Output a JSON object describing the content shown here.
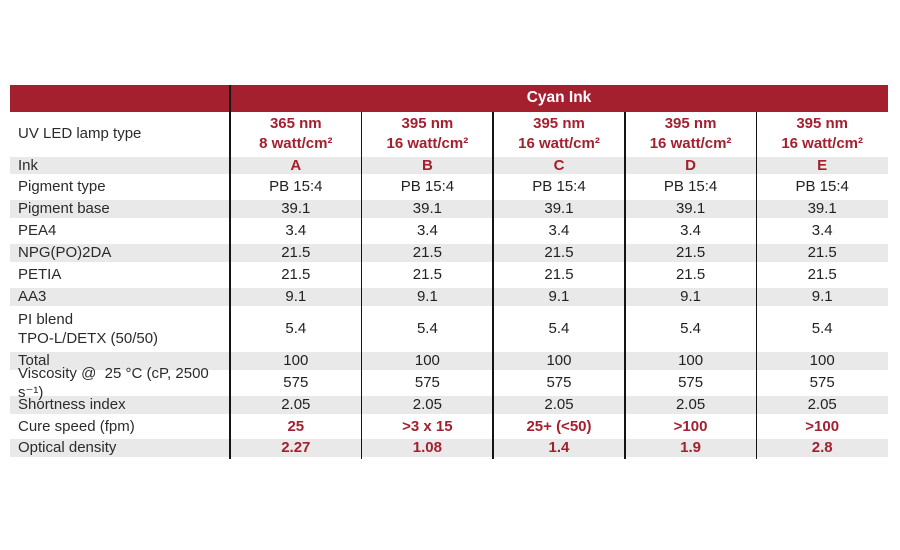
{
  "colors": {
    "accent": "#a4202f",
    "row_shade": "#e9e9e9",
    "header_text": "#ffffff"
  },
  "table": {
    "title": "Cyan Ink",
    "rows": [
      {
        "label": "UV LED lamp type",
        "values": [
          "365 nm\n8 watt/cm²",
          "395 nm\n16 watt/cm²",
          "395 nm\n16 watt/cm²",
          "395 nm\n16 watt/cm²",
          "395 nm\n16 watt/cm²"
        ],
        "red": true,
        "shade": false,
        "h": 43
      },
      {
        "label": "Ink",
        "values": [
          "A",
          "B",
          "C",
          "D",
          "E"
        ],
        "red": true,
        "shade": true,
        "h": 21
      },
      {
        "label": "Pigment type",
        "values": [
          "PB 15:4",
          "PB 15:4",
          "PB 15:4",
          "PB 15:4",
          "PB 15:4"
        ],
        "red": false,
        "shade": false,
        "h": 22
      },
      {
        "label": "Pigment base",
        "values": [
          "39.1",
          "39.1",
          "39.1",
          "39.1",
          "39.1"
        ],
        "red": false,
        "shade": true,
        "h": 22
      },
      {
        "label": "PEA4",
        "values": [
          "3.4",
          "3.4",
          "3.4",
          "3.4",
          "3.4"
        ],
        "red": false,
        "shade": false,
        "h": 22
      },
      {
        "label": "NPG(PO)2DA",
        "values": [
          "21.5",
          "21.5",
          "21.5",
          "21.5",
          "21.5"
        ],
        "red": false,
        "shade": true,
        "h": 22
      },
      {
        "label": "PETIA",
        "values": [
          "21.5",
          "21.5",
          "21.5",
          "21.5",
          "21.5"
        ],
        "red": false,
        "shade": false,
        "h": 22
      },
      {
        "label": "AA3",
        "values": [
          "9.1",
          "9.1",
          "9.1",
          "9.1",
          "9.1"
        ],
        "red": false,
        "shade": true,
        "h": 22
      },
      {
        "label": "PI blend\nTPO-L/DETX (50/50)",
        "values": [
          "5.4",
          "5.4",
          "5.4",
          "5.4",
          "5.4"
        ],
        "red": false,
        "shade": false,
        "h": 42
      },
      {
        "label": "Total",
        "values": [
          "100",
          "100",
          "100",
          "100",
          "100"
        ],
        "red": false,
        "shade": true,
        "h": 22
      },
      {
        "label": "Viscosity @  25 °C (cP, 2500 s⁻¹)",
        "values": [
          "575",
          "575",
          "575",
          "575",
          "575"
        ],
        "red": false,
        "shade": false,
        "h": 22
      },
      {
        "label": "Shortness index",
        "values": [
          "2.05",
          "2.05",
          "2.05",
          "2.05",
          "2.05"
        ],
        "red": false,
        "shade": true,
        "h": 22
      },
      {
        "label": "Cure speed (fpm)",
        "values": [
          "25",
          ">3 x 15",
          "25+ (<50)",
          ">100",
          ">100"
        ],
        "red": true,
        "shade": false,
        "h": 21
      },
      {
        "label": "Optical density",
        "values": [
          "2.27",
          "1.08",
          "1.4",
          "1.9",
          "2.8"
        ],
        "red": true,
        "shade": true,
        "h": 22
      }
    ]
  }
}
